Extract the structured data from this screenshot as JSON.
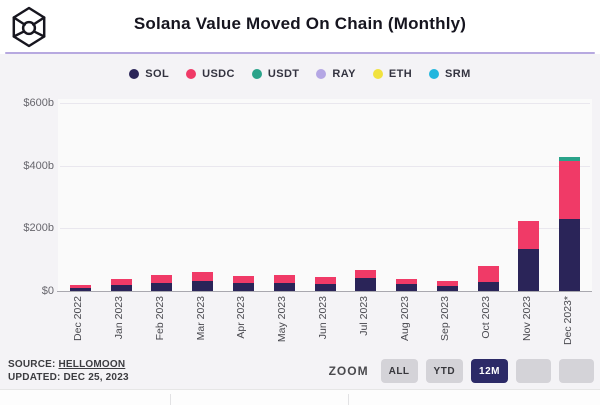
{
  "header": {
    "title": "Solana Value Moved On Chain (Monthly)",
    "logo_icon": "hellomoon-cube-logo",
    "divider_color": "#b7a9e0"
  },
  "chart_data": {
    "type": "bar",
    "stacked": true,
    "units": "$ billions",
    "title": "Solana Value Moved On Chain (Monthly)",
    "xlabel": "",
    "ylabel": "",
    "ylim": [
      0,
      600
    ],
    "grid": true,
    "legend_position": "top-center",
    "categories": [
      "Dec 2022",
      "Jan 2023",
      "Feb 2023",
      "Mar 2023",
      "Apr 2023",
      "May 2023",
      "Jun 2023",
      "Jul 2023",
      "Aug 2023",
      "Sep 2023",
      "Oct 2023",
      "Nov 2023",
      "Dec 2023*"
    ],
    "yticks": [
      {
        "label": "$600b",
        "value": 600
      },
      {
        "label": "$400b",
        "value": 400
      },
      {
        "label": "$200b",
        "value": 200
      },
      {
        "label": "$0",
        "value": 0
      }
    ],
    "series": [
      {
        "name": "SOL",
        "color": "#2a2458",
        "values": [
          8,
          19,
          26,
          32,
          25,
          26,
          23,
          43,
          23,
          16,
          28,
          135,
          230
        ]
      },
      {
        "name": "USDC",
        "color": "#f03a67",
        "values": [
          10,
          19,
          26,
          29,
          22,
          26,
          22,
          24,
          16,
          16,
          52,
          88,
          185
        ]
      },
      {
        "name": "USDT",
        "color": "#2aa38a",
        "values": [
          0,
          0,
          0,
          0,
          0,
          0,
          0,
          0,
          0,
          0,
          0,
          0,
          12
        ]
      },
      {
        "name": "RAY",
        "color": "#b4a6e4",
        "values": [
          0,
          0,
          0,
          0,
          0,
          0,
          0,
          0,
          0,
          0,
          0,
          0,
          0
        ]
      },
      {
        "name": "ETH",
        "color": "#f1e23f",
        "values": [
          0,
          0,
          0,
          0,
          0,
          0,
          0,
          0,
          0,
          0,
          0,
          0,
          0
        ]
      },
      {
        "name": "SRM",
        "color": "#21b6de",
        "values": [
          0,
          0,
          0,
          0,
          0,
          0,
          0,
          0,
          0,
          0,
          0,
          0,
          0
        ]
      }
    ]
  },
  "footer": {
    "source_label": "SOURCE:",
    "source_link": "HELLOMOON",
    "updated_text": "UPDATED: DEC 25, 2023",
    "zoom_label": "ZOOM",
    "zoom_buttons": [
      {
        "label": "ALL",
        "active": false
      },
      {
        "label": "YTD",
        "active": false
      },
      {
        "label": "12M",
        "active": true
      },
      {
        "label": "",
        "active": false
      },
      {
        "label": "",
        "active": false
      }
    ]
  }
}
